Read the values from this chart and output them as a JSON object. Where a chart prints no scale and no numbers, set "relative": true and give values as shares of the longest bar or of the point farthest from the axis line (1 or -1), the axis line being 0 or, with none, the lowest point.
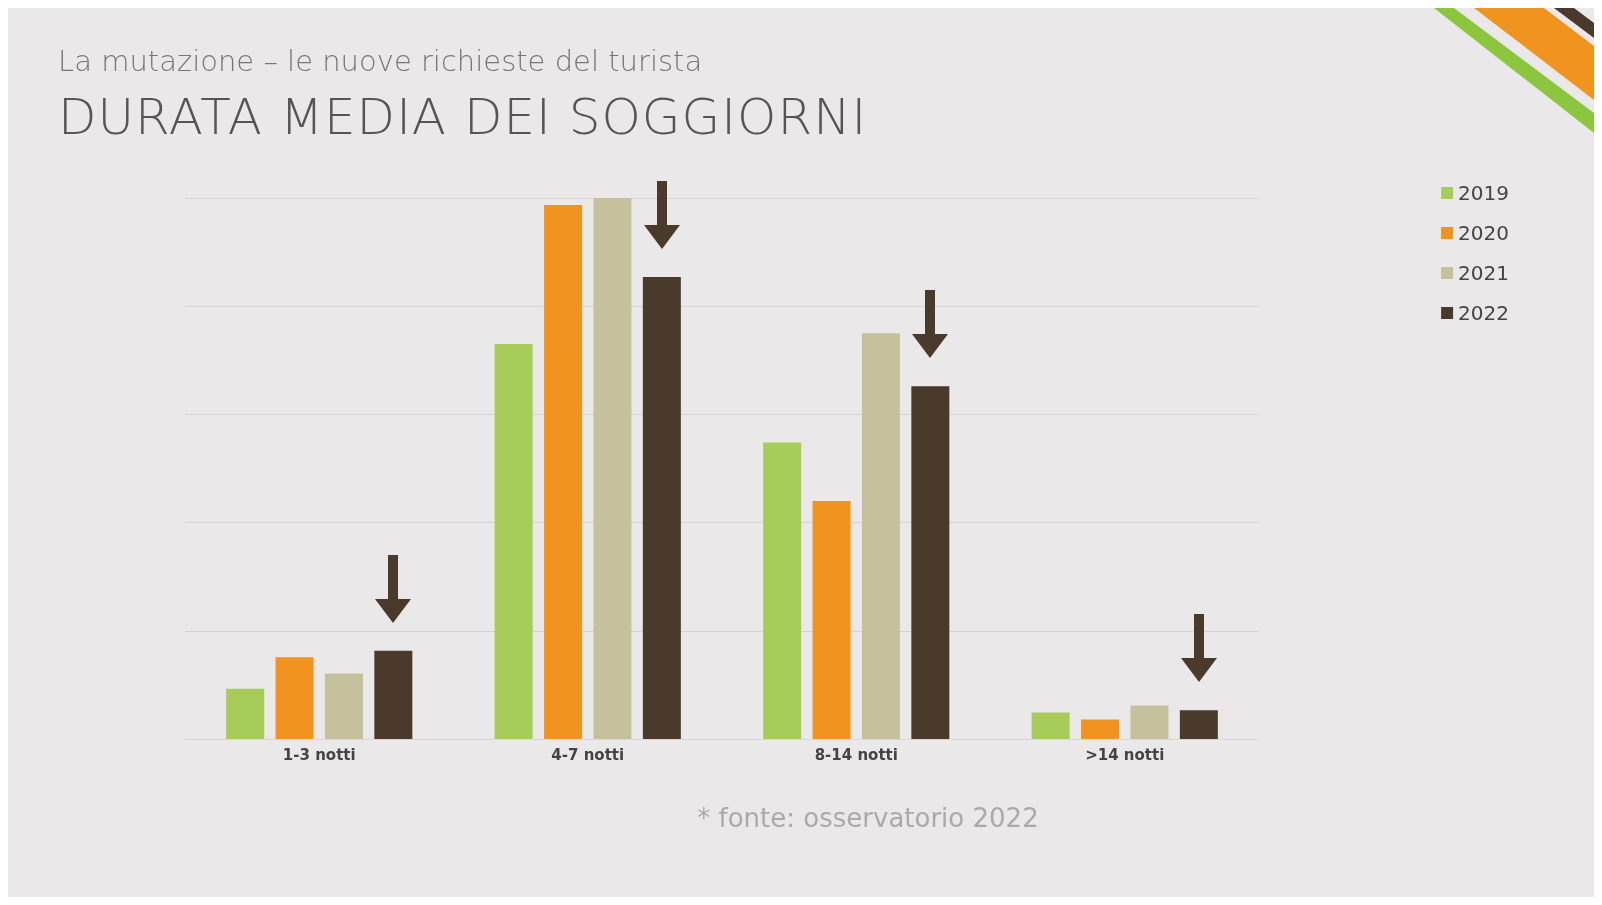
{
  "chart_data": {
    "type": "bar",
    "title": "DURATA MEDIA DEI SOGGIORNI",
    "subtitle": "La mutazione – le nuove richieste del turista",
    "categories": [
      "1-3 notti",
      "4-7 notti",
      "8-14 notti",
      ">14 notti"
    ],
    "relative": true,
    "grid": "y",
    "legend": "right",
    "series": [
      {
        "name": "2019",
        "color": "#a8cc5a",
        "values": [
          0.093,
          0.73,
          0.548,
          0.049
        ]
      },
      {
        "name": "2020",
        "color": "#f0931f",
        "values": [
          0.151,
          0.987,
          0.44,
          0.036
        ]
      },
      {
        "name": "2021",
        "color": "#c4c19c",
        "values": [
          0.121,
          1,
          0.75,
          0.062
        ]
      },
      {
        "name": "2022",
        "color": "#4a3a2c",
        "values": [
          0.163,
          0.854,
          0.652,
          0.053
        ]
      }
    ],
    "annotations": [
      "* fonte: osservatorio 2022"
    ]
  }
}
